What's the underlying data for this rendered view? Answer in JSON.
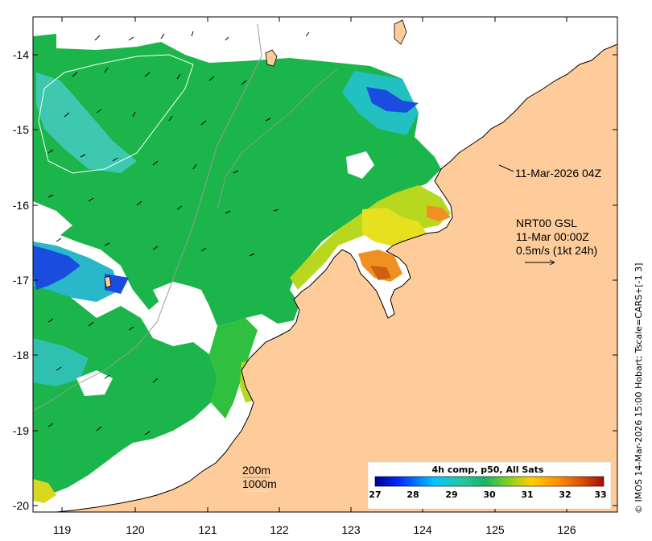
{
  "map": {
    "region": "Kimberley coast, NW Australia",
    "timestamp_label": "11-Mar-2026 04Z",
    "currents_title": "NRT00 GSL",
    "currents_time": "11-Mar 00:00Z",
    "currents_scale": "0.5m/s (1kt 24h)",
    "isobath_1": "200m",
    "isobath_2": "1000m",
    "credit": "© IMOS 14-Mar-2026 15:00 Hobart; Tscale=CARS+[-1 3]",
    "x_ticks": [
      "119",
      "120",
      "121",
      "122",
      "123",
      "124",
      "125",
      "126"
    ],
    "y_ticks": [
      "-14",
      "-15",
      "-16",
      "-17",
      "-18",
      "-19",
      "-20"
    ],
    "colorbar": {
      "title": "4h comp, p50, All Sats",
      "ticks": [
        "27",
        "28",
        "29",
        "30",
        "31",
        "32",
        "33"
      ],
      "colors": [
        "#00008f",
        "#0028ff",
        "#00c8ff",
        "#28c8a0",
        "#18b46a",
        "#30c040",
        "#7cd220",
        "#ffd000",
        "#ff9000",
        "#e05000",
        "#a01000"
      ]
    },
    "colors": {
      "land": "#fdcc9a",
      "sst_main": "#1cb54b",
      "sst_cyan": "#22c0c0",
      "sst_blue": "#1a4ce0",
      "sst_yellow": "#e6e020",
      "sst_orange": "#f09020"
    }
  }
}
